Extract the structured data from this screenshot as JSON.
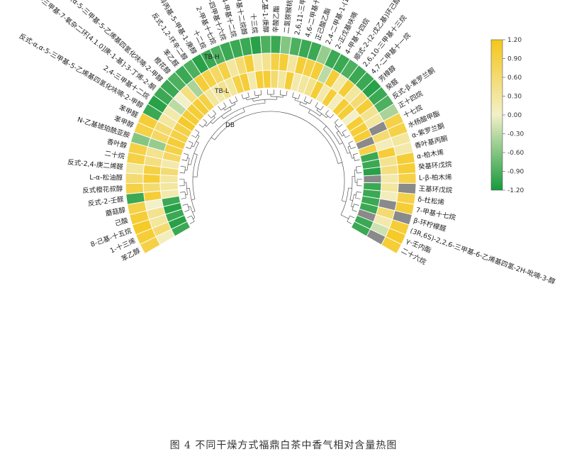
{
  "caption": "图 4 不同干燥方式福鼎白茶中香气相对含量热图",
  "chart_data": {
    "type": "heatmap",
    "layout": "circular",
    "rings": [
      "TB-H",
      "TB-L",
      "DB"
    ],
    "colorbar": {
      "ticks": [
        "1.20",
        "0.90",
        "0.60",
        "0.30",
        "0.00",
        "-0.30",
        "-0.60",
        "-0.90",
        "-1.20"
      ],
      "range": [
        -1.2,
        1.2
      ]
    },
    "colors": {
      "high": "#f5c61a",
      "mid": "#f2f0c8",
      "low": "#169a3c",
      "missing": "#8a8a8a"
    },
    "compounds": [
      "苯乙醇",
      "1-十三烯",
      "8-己基-十五烷",
      "己酸",
      "蘑菇醇",
      "反式-2-壬醛",
      "反式橙花叔醇",
      "L-α-松油醇",
      "反式-2,4-庚二烯醛",
      "二十烷",
      "香叶醇",
      "N-乙基琥珀酰亚胺",
      "苯甲醇",
      "苯甲醛",
      "反式-α,α-5-三甲基-5-乙烯基四氢化呋喃-2-甲醇",
      "2,4-三甲基十二烷",
      "4-[2,2,6-三甲基-7-氧杂二环[4.1.0]庚-1-基]-3-丁烯-2-酮",
      "顺式-α,α-5-三甲基-5-乙烯基四氢化呋喃-2-甲醇",
      "橙花醇",
      "苯乙醛",
      "反式-1,2-环辛二醇",
      "2-异丙基-5-甲基-1-庚醇",
      "十二烷",
      "2-甲基十七烷",
      "2,6,11,15-四甲基十六烷",
      "4-甲基十二烷",
      "11-甲基十二烷醇",
      "十三烷",
      "2,4-二乙基-1-庚醇",
      "辛酸乙酯",
      "二氢猕猴桃内酯",
      "2,6,11-三甲基十二烷",
      "4,6-二甲基十二烷",
      "正己酸乙酯",
      "2,4-二甲基-1-(1-异丙基)-环己烷",
      "2-正戊基呋喃",
      "4-甲基十四烷",
      "顺式-2-(2-戊乙基)环己醇",
      "2,6,10-三甲基十三烷",
      "4,7-二甲基十一烷",
      "芳樟醇",
      "癸醛",
      "反式-β-紫罗兰酮",
      "正十四烷",
      "十七烷",
      "水杨酸甲酯",
      "α-紫罗兰酮",
      "香叶基丙酮",
      "α-柏木烯",
      "癸基环戊烷",
      "L-β-柏木烯",
      "王基环戊烷",
      "δ-杜松烯",
      "7-甲基十七烷",
      "β-环柠檬醛",
      "(3R,6S)-2,2,6-三甲基-6-乙烯基四氢-2H-吡喃-3-醇",
      "γ-壬内酯",
      "二十六烷"
    ],
    "values": [
      [
        0.9,
        0.1,
        -1.0
      ],
      [
        1.0,
        0.6,
        -1.1
      ],
      [
        1.1,
        0.3,
        -1.0
      ],
      [
        1.0,
        0.4,
        -1.1
      ],
      [
        0.9,
        0.0,
        -1.0
      ],
      [
        -1.0,
        1.0,
        0.2
      ],
      [
        0.9,
        0.6,
        0.3
      ],
      [
        0.6,
        1.0,
        0.3
      ],
      [
        0.3,
        0.9,
        0.6
      ],
      [
        0.9,
        0.5,
        0.2
      ],
      [
        0.9,
        0.4,
        0.7
      ],
      [
        -0.6,
        -0.5,
        0.9
      ],
      [
        0.9,
        0.7,
        1.0
      ],
      [
        1.0,
        0.6,
        0.9
      ],
      [
        -1.0,
        0.3,
        0.9
      ],
      [
        -1.1,
        0.2,
        1.1
      ],
      [
        -1.0,
        -0.3,
        1.0
      ],
      [
        -1.0,
        0.0,
        1.0
      ],
      [
        -0.9,
        0.5,
        1.0
      ],
      [
        -1.0,
        -0.4,
        0.9
      ],
      [
        -0.9,
        1.0,
        0.3
      ],
      [
        -1.1,
        0.9,
        0.2
      ],
      [
        -1.0,
        0.7,
        0.4
      ],
      [
        -0.9,
        0.9,
        0.3
      ],
      [
        -1.0,
        0.3,
        0.9
      ],
      [
        -1.0,
        0.6,
        1.0
      ],
      [
        -1.0,
        1.0,
        0.2
      ],
      [
        -1.1,
        0.2,
        1.0
      ],
      [
        -0.9,
        0.4,
        1.0
      ],
      [
        -1.0,
        0.9,
        0.6
      ],
      [
        -0.6,
        1.0,
        0.3
      ],
      [
        -0.9,
        0.3,
        1.0
      ],
      [
        -1.0,
        1.0,
        0.2
      ],
      [
        -1.0,
        0.9,
        0.3
      ],
      [
        -0.5,
        1.0,
        0.4
      ],
      [
        -1.0,
        -0.3,
        1.0
      ],
      [
        -1.0,
        1.0,
        0.2
      ],
      [
        -0.9,
        0.2,
        1.0
      ],
      [
        -1.0,
        1.0,
        0.1
      ],
      [
        -1.0,
        0.3,
        1.0
      ],
      [
        -1.1,
        0.6,
        1.0
      ],
      [
        -1.0,
        1.0,
        0.0
      ],
      [
        -0.9,
        0.4,
        1.0
      ],
      [
        -0.4,
        0.3,
        1.0
      ],
      [
        0.9,
        null,
        1.0
      ],
      [
        0.9,
        0.6,
        null
      ],
      [
        0.3,
        0.1,
        0.9
      ],
      [
        0.2,
        1.0,
        -1.0
      ],
      [
        1.0,
        0.4,
        -1.0
      ],
      [
        1.0,
        0.5,
        -1.1
      ],
      [
        0.9,
        0.2,
        null
      ],
      [
        null,
        0.3,
        -1.0
      ],
      [
        0.9,
        0.1,
        -1.0
      ],
      [
        1.0,
        null,
        -1.0
      ],
      [
        null,
        0.6,
        -1.0
      ],
      [
        1.0,
        0.2,
        null
      ],
      [
        1.1,
        -0.2,
        -1.0
      ],
      [
        1.0,
        null,
        -1.0
      ]
    ]
  }
}
